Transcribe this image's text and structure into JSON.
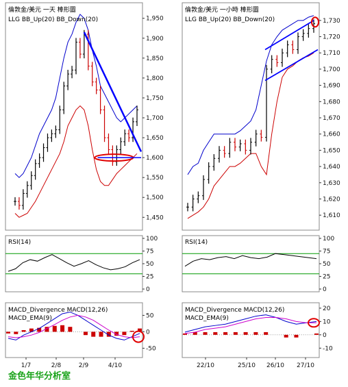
{
  "watermark": "金色年华分析室",
  "colors": {
    "up": "#000000",
    "down": "#cc0000",
    "bb_up": "#0000cc",
    "bb_down": "#cc0000",
    "trend": "#0000ff",
    "circle": "#e00000",
    "rsi": "#000000",
    "rsi_lines": "#009900",
    "macd": "#0000cc",
    "macd_ema": "#cc00cc",
    "macd_hist": "#cc0000"
  },
  "chart_data": [
    {
      "id": "daily",
      "type": "candlestick",
      "title": "倫敦金/美元 一天 棒形圖",
      "indicator_label": "LLG  BB_Up(20)  BB_Down(20)",
      "y_ticks": [
        "1,950",
        "1,900",
        "1,850",
        "1,800",
        "1,750",
        "1,700",
        "1,650",
        "1,600",
        "1,550",
        "1,500",
        "1,450"
      ],
      "ylim": [
        1435,
        1965
      ],
      "x_ticks": [
        "1/7",
        "2/8",
        "2/9",
        "4/10"
      ],
      "annotations": [
        "downtrend line from ~1,915 to ~1,615",
        "ellipse around support ~1,600",
        "circle at ~1,570 on MACD"
      ],
      "approx_close": [
        1490,
        1480,
        1510,
        1530,
        1555,
        1585,
        1600,
        1625,
        1650,
        1660,
        1670,
        1720,
        1780,
        1810,
        1820,
        1890,
        1860,
        1910,
        1830,
        1790,
        1770,
        1720,
        1650,
        1620,
        1590,
        1620,
        1640,
        1660,
        1650,
        1690,
        1720
      ],
      "bb_up": [
        1560,
        1550,
        1560,
        1580,
        1600,
        1630,
        1660,
        1680,
        1700,
        1720,
        1750,
        1800,
        1850,
        1890,
        1910,
        1940,
        1960,
        1950,
        1920,
        1870,
        1830,
        1780,
        1760,
        1740,
        1720,
        1700,
        1690,
        1700,
        1710,
        1720,
        1730
      ],
      "bb_down": [
        1460,
        1450,
        1455,
        1460,
        1475,
        1490,
        1510,
        1530,
        1550,
        1570,
        1590,
        1610,
        1640,
        1680,
        1700,
        1720,
        1730,
        1720,
        1680,
        1620,
        1570,
        1540,
        1530,
        1530,
        1545,
        1560,
        1570,
        1580,
        1590,
        1600,
        1610
      ]
    },
    {
      "id": "hourly",
      "type": "candlestick",
      "title": "倫敦金/美元 一小時 棒形圖",
      "indicator_label": "LLG  BB_Up(20)  BB_Down(20)",
      "y_ticks": [
        "1,730",
        "1,720",
        "1,710",
        "1,700",
        "1,690",
        "1,680",
        "1,670",
        "1,660",
        "1,650",
        "1,640",
        "1,630",
        "1,620",
        "1,610"
      ],
      "ylim": [
        1605,
        1735
      ],
      "x_ticks": [
        "22/10",
        "25/10",
        "26/10",
        "27/10"
      ],
      "annotations": [
        "rising channel lines",
        "circle at top ~1,728"
      ],
      "approx_close": [
        1615,
        1620,
        1622,
        1632,
        1640,
        1645,
        1650,
        1648,
        1655,
        1652,
        1654,
        1650,
        1655,
        1660,
        1658,
        1700,
        1706,
        1704,
        1710,
        1715,
        1712,
        1720,
        1722,
        1725,
        1728
      ],
      "bb_up": [
        1635,
        1640,
        1642,
        1650,
        1655,
        1660,
        1660,
        1660,
        1660,
        1660,
        1662,
        1665,
        1668,
        1675,
        1690,
        1705,
        1715,
        1720,
        1724,
        1726,
        1728,
        1730,
        1730,
        1732,
        1733
      ],
      "bb_down": [
        1608,
        1610,
        1612,
        1615,
        1620,
        1628,
        1632,
        1636,
        1640,
        1640,
        1642,
        1645,
        1648,
        1648,
        1640,
        1635,
        1660,
        1680,
        1695,
        1700,
        1702,
        1705,
        1707,
        1708,
        1710
      ]
    },
    {
      "id": "daily_rsi",
      "type": "line",
      "title": "RSI(14)",
      "y_ticks": [
        "100",
        "75",
        "50",
        "25",
        "0"
      ],
      "ylim": [
        0,
        100
      ],
      "ref_lines": [
        70,
        30
      ],
      "values": [
        35,
        40,
        52,
        58,
        55,
        62,
        68,
        60,
        52,
        45,
        50,
        56,
        48,
        42,
        38,
        40,
        44,
        52,
        58
      ]
    },
    {
      "id": "hourly_rsi",
      "type": "line",
      "title": "RSI(14)",
      "y_ticks": [
        "100",
        "75",
        "50",
        "25",
        "0"
      ],
      "ylim": [
        0,
        100
      ],
      "ref_lines": [
        70,
        30
      ],
      "values": [
        45,
        55,
        60,
        58,
        62,
        64,
        60,
        66,
        62,
        60,
        63,
        70,
        68,
        66,
        64,
        62,
        60
      ]
    },
    {
      "id": "daily_macd",
      "type": "line",
      "title": "MACD_Divergence  MACD(12,26)",
      "subtitle": "MACD_EMA(9)",
      "y_ticks": [
        "50",
        "0",
        "-50"
      ],
      "ylim": [
        -70,
        80
      ],
      "macd": [
        -20,
        -25,
        -10,
        0,
        10,
        25,
        40,
        55,
        60,
        50,
        35,
        20,
        5,
        -10,
        -20,
        -25,
        -15,
        -5
      ],
      "ema": [
        -15,
        -18,
        -15,
        -10,
        -2,
        10,
        22,
        35,
        45,
        50,
        45,
        35,
        20,
        5,
        -8,
        -15,
        -18,
        -15
      ],
      "hist": [
        -5,
        -7,
        5,
        10,
        12,
        15,
        18,
        20,
        15,
        0,
        -10,
        -15,
        -15,
        -15,
        -12,
        -10,
        3,
        10
      ]
    },
    {
      "id": "hourly_macd",
      "type": "line",
      "title": "MACD_Divergence  MACD(12,26)",
      "subtitle": "MACD_EMA(9)",
      "y_ticks": [
        "20",
        "10",
        "0",
        "-10"
      ],
      "ylim": [
        -15,
        22
      ],
      "macd": [
        2,
        4,
        6,
        7,
        8,
        10,
        12,
        14,
        15,
        13,
        10,
        8,
        9,
        10
      ],
      "ema": [
        1,
        2,
        4,
        5,
        6,
        8,
        10,
        12,
        13,
        13,
        12,
        10,
        9,
        9
      ],
      "hist": [
        1,
        2,
        2,
        2,
        2,
        2,
        2,
        2,
        2,
        0,
        -2,
        -2,
        0,
        1
      ]
    }
  ]
}
